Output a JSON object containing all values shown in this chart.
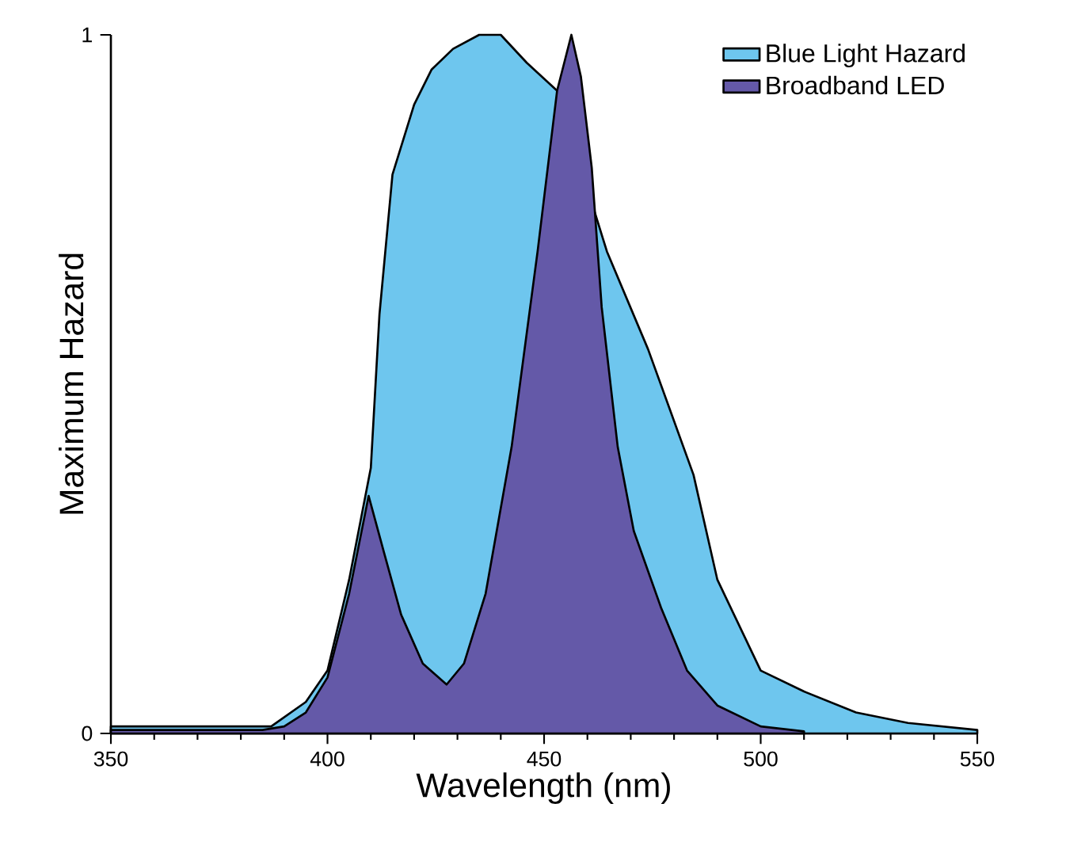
{
  "chart_data": {
    "type": "area",
    "xlabel": "Wavelength (nm)",
    "ylabel": "Maximum Hazard",
    "xlim": [
      350,
      550
    ],
    "ylim": [
      0,
      1
    ],
    "xticks": [
      350,
      400,
      450,
      500,
      550
    ],
    "yticks": [
      0,
      1
    ],
    "legend": "top right",
    "series": [
      {
        "name": "Blue Light Hazard",
        "color": "#6ec6ee",
        "x": [
          350,
          380,
          387,
          395,
          400,
          405,
          410,
          412,
          415,
          420,
          424,
          429,
          435,
          440,
          446,
          453,
          460,
          464.5,
          474,
          484.5,
          490,
          500,
          510,
          522,
          534,
          550
        ],
        "values": [
          0.01,
          0.01,
          0.01,
          0.045,
          0.09,
          0.22,
          0.38,
          0.6,
          0.8,
          0.9,
          0.95,
          0.98,
          1.0,
          1.0,
          0.96,
          0.92,
          null,
          0.69,
          0.55,
          0.37,
          0.22,
          0.09,
          0.06,
          0.03,
          0.015,
          0.005
        ]
      },
      {
        "name": "Broadband LED",
        "color": "#6459a8",
        "x": [
          350,
          385,
          390,
          395,
          400,
          405,
          409.5,
          413,
          417,
          422,
          427.5,
          431.5,
          436.5,
          442.5,
          448.5,
          453,
          456.3,
          458.5,
          461,
          463.3,
          467,
          470.7,
          477,
          483,
          490,
          500,
          510
        ],
        "values": [
          0.005,
          0.005,
          0.01,
          0.03,
          0.08,
          0.2,
          0.34,
          0.26,
          0.17,
          0.1,
          0.07,
          0.1,
          0.2,
          0.41,
          0.69,
          0.92,
          1.0,
          0.94,
          0.81,
          0.61,
          0.41,
          0.29,
          0.18,
          0.09,
          0.04,
          0.01,
          0.003
        ]
      }
    ]
  }
}
